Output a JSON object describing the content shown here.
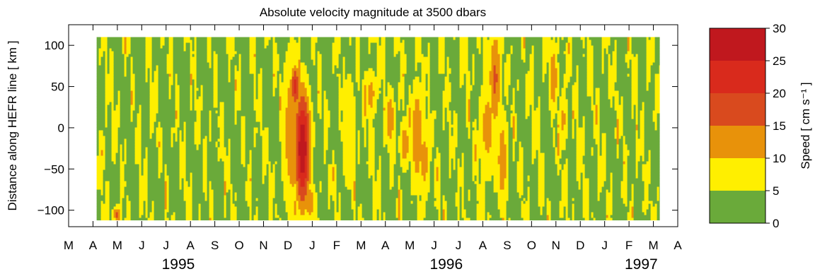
{
  "chart_data": {
    "type": "heatmap",
    "title": "Absolute velocity magnitude at 3500 dbars",
    "ylabel": "Distance along HEFR line [ km ]",
    "xlabel": "",
    "y_range": [
      -120,
      125
    ],
    "y_ticks": [
      -100,
      -50,
      0,
      50,
      100
    ],
    "data_y_range": [
      -112,
      110
    ],
    "x_start_month_index": 0,
    "x_month_labels": [
      "M",
      "A",
      "M",
      "J",
      "J",
      "A",
      "S",
      "O",
      "N",
      "D",
      "J",
      "F",
      "M",
      "A",
      "M",
      "J",
      "J",
      "A",
      "S",
      "O",
      "N",
      "D",
      "J",
      "F",
      "M",
      "A"
    ],
    "x_year_labels": [
      {
        "label": "1995",
        "month_center": 4.5
      },
      {
        "label": "1996",
        "month_center": 15.5
      },
      {
        "label": "1997",
        "month_center": 23.5
      }
    ],
    "data_x_range_months": [
      1.15,
      24.25
    ],
    "colorbar": {
      "label": "Speed  [ cm s⁻¹ ]",
      "ticks": [
        0,
        5,
        10,
        15,
        20,
        25,
        30
      ],
      "bins": [
        {
          "min": 0,
          "max": 5,
          "color": "#6aaa3a"
        },
        {
          "min": 5,
          "max": 10,
          "color": "#ffef00"
        },
        {
          "min": 10,
          "max": 15,
          "color": "#e8920a"
        },
        {
          "min": 15,
          "max": 20,
          "color": "#d94a1e"
        },
        {
          "min": 20,
          "max": 25,
          "color": "#d92a1c"
        },
        {
          "min": 25,
          "max": 30,
          "color": "#c0181e"
        }
      ]
    },
    "features": [
      {
        "t": 9.6,
        "y": -25,
        "speed": 29,
        "st": 0.25,
        "sy": 55
      },
      {
        "t": 9.3,
        "y": 50,
        "speed": 22,
        "st": 0.15,
        "sy": 20
      },
      {
        "t": 9.9,
        "y": -90,
        "speed": 13,
        "st": 0.2,
        "sy": 20
      },
      {
        "t": 9.2,
        "y": -5,
        "speed": 14,
        "st": 0.35,
        "sy": 80
      },
      {
        "t": 12.4,
        "y": 40,
        "speed": 12,
        "st": 0.2,
        "sy": 25
      },
      {
        "t": 13.2,
        "y": 10,
        "speed": 14,
        "st": 0.15,
        "sy": 30
      },
      {
        "t": 13.8,
        "y": -20,
        "speed": 13,
        "st": 0.18,
        "sy": 25
      },
      {
        "t": 14.3,
        "y": -10,
        "speed": 15,
        "st": 0.2,
        "sy": 50
      },
      {
        "t": 14.6,
        "y": -40,
        "speed": 12,
        "st": 0.2,
        "sy": 40
      },
      {
        "t": 17.5,
        "y": 60,
        "speed": 16,
        "st": 0.2,
        "sy": 50
      },
      {
        "t": 17.2,
        "y": 0,
        "speed": 12,
        "st": 0.3,
        "sy": 50
      },
      {
        "t": 17.8,
        "y": -40,
        "speed": 13,
        "st": 0.2,
        "sy": 50
      },
      {
        "t": 19.9,
        "y": 60,
        "speed": 14,
        "st": 0.15,
        "sy": 35
      },
      {
        "t": 20.3,
        "y": 10,
        "speed": 11,
        "st": 0.15,
        "sy": 30
      },
      {
        "t": 2.0,
        "y": -105,
        "speed": 16,
        "st": 0.15,
        "sy": 8
      },
      {
        "t": 1.4,
        "y": -30,
        "speed": 11,
        "st": 0.08,
        "sy": 20
      },
      {
        "t": 23.3,
        "y": 0,
        "speed": 12,
        "st": 0.05,
        "sy": 8
      },
      {
        "t": 11.5,
        "y": -5,
        "speed": 10,
        "st": 0.25,
        "sy": 60
      }
    ]
  }
}
